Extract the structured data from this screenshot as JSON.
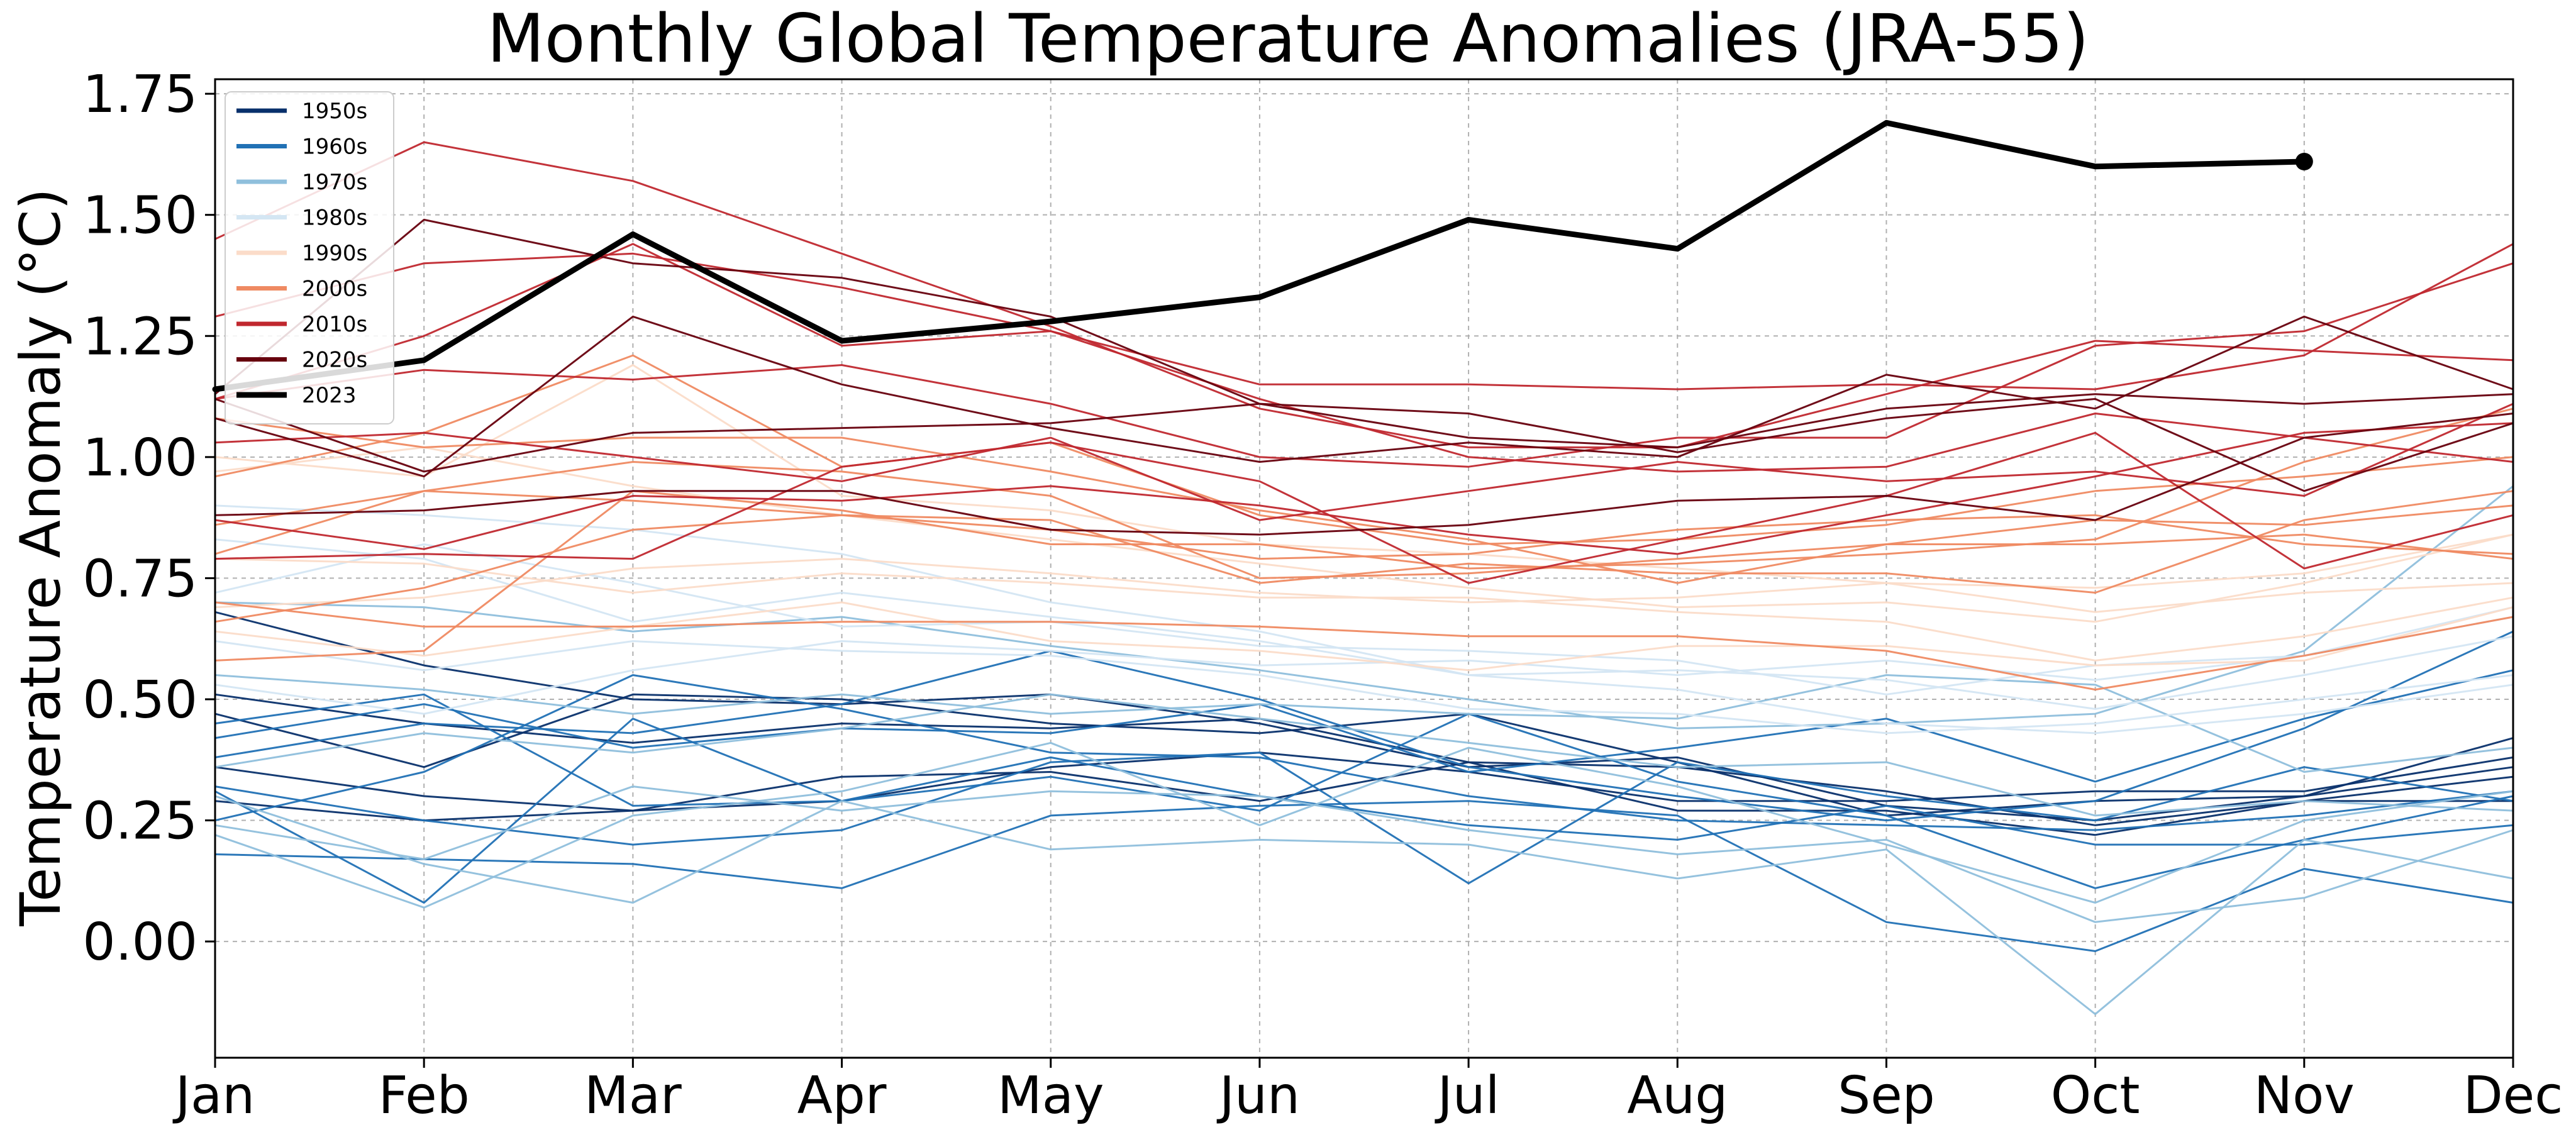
{
  "chart_data": {
    "type": "line",
    "title": "Monthly Global Temperature Anomalies (JRA-55)",
    "xlabel": "",
    "ylabel": "Temperature Anomaly (°C)",
    "categories": [
      "Jan",
      "Feb",
      "Mar",
      "Apr",
      "May",
      "Jun",
      "Jul",
      "Aug",
      "Sep",
      "Oct",
      "Nov",
      "Dec"
    ],
    "ylim": [
      -0.24,
      1.78
    ],
    "yticks": [
      0.0,
      0.25,
      0.5,
      0.75,
      1.0,
      1.25,
      1.5,
      1.75
    ],
    "ytick_labels": [
      "0.00",
      "0.25",
      "0.50",
      "0.75",
      "1.00",
      "1.25",
      "1.50",
      "1.75"
    ],
    "grid": true,
    "legend_position": "top-left",
    "legend": [
      {
        "label": "1950s",
        "color": "#08306b"
      },
      {
        "label": "1960s",
        "color": "#2171b5"
      },
      {
        "label": "1970s",
        "color": "#8fbfdc"
      },
      {
        "label": "1980s",
        "color": "#d4e6f3"
      },
      {
        "label": "1990s",
        "color": "#fbdcc9"
      },
      {
        "label": "2000s",
        "color": "#ef8a62"
      },
      {
        "label": "2010s",
        "color": "#c0282f"
      },
      {
        "label": "2020s",
        "color": "#67000d"
      },
      {
        "label": "2023",
        "color": "#000000"
      }
    ],
    "series": [
      {
        "decade": "1950s",
        "color": "#08306b",
        "values": [
          0.47,
          0.36,
          0.51,
          0.5,
          0.45,
          0.43,
          0.47,
          0.37,
          0.26,
          0.29,
          0.3,
          0.36
        ]
      },
      {
        "decade": "1950s",
        "color": "#08306b",
        "values": [
          0.68,
          0.57,
          0.5,
          0.49,
          0.51,
          0.45,
          0.36,
          0.38,
          0.28,
          0.25,
          0.3,
          0.42
        ]
      },
      {
        "decade": "1950s",
        "color": "#08306b",
        "values": [
          0.36,
          0.3,
          0.27,
          0.34,
          0.35,
          0.29,
          0.37,
          0.27,
          0.27,
          0.22,
          0.29,
          0.34
        ]
      },
      {
        "decade": "1950s",
        "color": "#08306b",
        "values": [
          0.29,
          0.25,
          0.27,
          0.29,
          0.36,
          0.39,
          0.35,
          0.29,
          0.29,
          0.31,
          0.31,
          0.38
        ]
      },
      {
        "decade": "1950s",
        "color": "#08306b",
        "values": [
          0.51,
          0.45,
          0.41,
          0.45,
          0.44,
          0.46,
          0.37,
          0.36,
          0.31,
          0.24,
          0.29,
          0.29
        ]
      },
      {
        "decade": "1960s",
        "color": "#2171b5",
        "values": [
          0.32,
          0.25,
          0.2,
          0.23,
          0.37,
          0.39,
          0.12,
          0.37,
          0.3,
          0.25,
          0.36,
          0.29
        ]
      },
      {
        "decade": "1960s",
        "color": "#2171b5",
        "values": [
          0.18,
          0.17,
          0.16,
          0.11,
          0.26,
          0.28,
          0.29,
          0.26,
          0.04,
          -0.02,
          0.15,
          0.08
        ]
      },
      {
        "decade": "1960s",
        "color": "#2171b5",
        "values": [
          0.42,
          0.49,
          0.4,
          0.44,
          0.43,
          0.49,
          0.35,
          0.4,
          0.46,
          0.33,
          0.46,
          0.56
        ]
      },
      {
        "decade": "1960s",
        "color": "#2171b5",
        "values": [
          0.31,
          0.08,
          0.46,
          0.29,
          0.34,
          0.27,
          0.47,
          0.33,
          0.26,
          0.11,
          0.21,
          0.3
        ]
      },
      {
        "decade": "1960s",
        "color": "#2171b5",
        "values": [
          0.45,
          0.51,
          0.28,
          0.29,
          0.38,
          0.3,
          0.24,
          0.21,
          0.28,
          0.2,
          0.2,
          0.24
        ]
      },
      {
        "decade": "1960s",
        "color": "#2171b5",
        "values": [
          0.25,
          0.35,
          0.55,
          0.48,
          0.39,
          0.38,
          0.3,
          0.25,
          0.24,
          0.23,
          0.26,
          0.31
        ]
      },
      {
        "decade": "1960s",
        "color": "#2171b5",
        "values": [
          0.38,
          0.45,
          0.43,
          0.49,
          0.6,
          0.5,
          0.36,
          0.3,
          0.25,
          0.29,
          0.44,
          0.64
        ]
      },
      {
        "decade": "1970s",
        "color": "#8fbfdc",
        "values": [
          0.22,
          0.07,
          0.26,
          0.31,
          0.41,
          0.24,
          0.4,
          0.32,
          0.2,
          0.08,
          0.25,
          0.31
        ]
      },
      {
        "decade": "1970s",
        "color": "#8fbfdc",
        "values": [
          0.3,
          0.16,
          0.08,
          0.29,
          0.19,
          0.21,
          0.2,
          0.13,
          0.19,
          -0.15,
          0.21,
          0.13
        ]
      },
      {
        "decade": "1970s",
        "color": "#8fbfdc",
        "values": [
          0.7,
          0.69,
          0.64,
          0.67,
          0.61,
          0.56,
          0.5,
          0.44,
          0.45,
          0.47,
          0.6,
          0.94
        ]
      },
      {
        "decade": "1970s",
        "color": "#8fbfdc",
        "values": [
          0.24,
          0.17,
          0.32,
          0.27,
          0.31,
          0.3,
          0.23,
          0.18,
          0.21,
          0.04,
          0.09,
          0.23
        ]
      },
      {
        "decade": "1970s",
        "color": "#8fbfdc",
        "values": [
          0.55,
          0.52,
          0.47,
          0.51,
          0.47,
          0.49,
          0.47,
          0.46,
          0.55,
          0.53,
          0.35,
          0.4
        ]
      },
      {
        "decade": "1970s",
        "color": "#8fbfdc",
        "values": [
          0.36,
          0.43,
          0.39,
          0.44,
          0.51,
          0.46,
          0.41,
          0.36,
          0.37,
          0.26,
          0.29,
          0.27
        ]
      },
      {
        "decade": "1980s",
        "color": "#d4e6f3",
        "values": [
          0.83,
          0.79,
          0.66,
          0.72,
          0.67,
          0.62,
          0.55,
          0.56,
          0.54,
          0.48,
          0.55,
          0.63
        ]
      },
      {
        "decade": "1980s",
        "color": "#d4e6f3",
        "values": [
          0.62,
          0.56,
          0.62,
          0.6,
          0.59,
          0.55,
          0.48,
          0.47,
          0.43,
          0.45,
          0.5,
          0.55
        ]
      },
      {
        "decade": "1980s",
        "color": "#d4e6f3",
        "values": [
          0.9,
          0.88,
          0.85,
          0.8,
          0.7,
          0.64,
          0.55,
          0.52,
          0.45,
          0.43,
          0.47,
          0.53
        ]
      },
      {
        "decade": "1980s",
        "color": "#d4e6f3",
        "values": [
          0.53,
          0.47,
          0.56,
          0.62,
          0.6,
          0.57,
          0.58,
          0.55,
          0.58,
          0.54,
          0.59,
          0.67
        ]
      },
      {
        "decade": "1980s",
        "color": "#d4e6f3",
        "values": [
          0.72,
          0.82,
          0.74,
          0.65,
          0.66,
          0.61,
          0.6,
          0.58,
          0.51,
          0.57,
          0.59,
          0.69
        ]
      },
      {
        "decade": "1990s",
        "color": "#fbdcc9",
        "values": [
          1.0,
          0.96,
          1.19,
          0.92,
          0.89,
          0.82,
          0.8,
          0.77,
          0.74,
          0.73,
          0.76,
          0.84
        ]
      },
      {
        "decade": "1990s",
        "color": "#fbdcc9",
        "values": [
          0.79,
          0.78,
          0.72,
          0.76,
          0.74,
          0.71,
          0.71,
          0.68,
          0.66,
          0.58,
          0.63,
          0.71
        ]
      },
      {
        "decade": "1990s",
        "color": "#fbdcc9",
        "values": [
          0.64,
          0.59,
          0.65,
          0.7,
          0.62,
          0.6,
          0.56,
          0.61,
          0.61,
          0.57,
          0.58,
          0.69
        ]
      },
      {
        "decade": "1990s",
        "color": "#fbdcc9",
        "values": [
          0.97,
          1.02,
          0.94,
          0.88,
          0.83,
          0.78,
          0.73,
          0.69,
          0.7,
          0.66,
          0.74,
          0.84
        ]
      },
      {
        "decade": "1990s",
        "color": "#fbdcc9",
        "values": [
          0.69,
          0.71,
          0.77,
          0.79,
          0.76,
          0.72,
          0.7,
          0.71,
          0.74,
          0.68,
          0.72,
          0.74
        ]
      },
      {
        "decade": "2000s",
        "color": "#ef8a62",
        "values": [
          0.58,
          0.6,
          0.93,
          0.89,
          0.82,
          0.82,
          0.77,
          0.78,
          0.8,
          0.83,
          0.99,
          1.1
        ]
      },
      {
        "decade": "2000s",
        "color": "#ef8a62",
        "values": [
          0.96,
          1.05,
          1.21,
          0.98,
          1.03,
          0.88,
          0.82,
          0.83,
          0.86,
          0.93,
          0.96,
          1.0
        ]
      },
      {
        "decade": "2000s",
        "color": "#ef8a62",
        "values": [
          0.66,
          0.73,
          0.85,
          0.88,
          0.87,
          0.74,
          0.78,
          0.76,
          0.76,
          0.72,
          0.87,
          0.93
        ]
      },
      {
        "decade": "2000s",
        "color": "#ef8a62",
        "values": [
          0.8,
          0.93,
          0.99,
          0.97,
          0.92,
          0.75,
          0.76,
          0.79,
          0.82,
          0.82,
          0.84,
          0.79
        ]
      },
      {
        "decade": "2000s",
        "color": "#ef8a62",
        "values": [
          0.7,
          0.65,
          0.65,
          0.66,
          0.66,
          0.65,
          0.63,
          0.63,
          0.6,
          0.52,
          0.59,
          0.67
        ]
      },
      {
        "decade": "2000s",
        "color": "#ef8a62",
        "values": [
          1.08,
          1.02,
          1.04,
          1.04,
          0.97,
          0.89,
          0.83,
          0.74,
          0.82,
          0.87,
          0.86,
          0.9
        ]
      },
      {
        "decade": "2000s",
        "color": "#ef8a62",
        "values": [
          0.86,
          0.93,
          0.91,
          0.88,
          0.85,
          0.79,
          0.8,
          0.85,
          0.87,
          0.88,
          0.82,
          0.8
        ]
      },
      {
        "decade": "2010s",
        "color": "#c0282f",
        "values": [
          1.29,
          1.4,
          1.42,
          1.35,
          1.26,
          1.15,
          1.15,
          1.14,
          1.15,
          1.14,
          1.21,
          1.44
        ]
      },
      {
        "decade": "2010s",
        "color": "#c0282f",
        "values": [
          1.45,
          1.65,
          1.57,
          1.42,
          1.27,
          1.1,
          1.02,
          1.02,
          1.13,
          1.24,
          1.22,
          1.2
        ]
      },
      {
        "decade": "2010s",
        "color": "#c0282f",
        "values": [
          1.12,
          1.18,
          1.16,
          1.19,
          1.11,
          1.0,
          0.98,
          1.04,
          1.04,
          1.23,
          1.26,
          1.4
        ]
      },
      {
        "decade": "2010s",
        "color": "#c0282f",
        "values": [
          0.87,
          0.81,
          0.92,
          0.91,
          0.94,
          0.9,
          0.84,
          0.8,
          0.88,
          0.96,
          1.05,
          1.07
        ]
      },
      {
        "decade": "2010s",
        "color": "#c0282f",
        "values": [
          0.79,
          0.8,
          0.79,
          0.98,
          1.03,
          0.95,
          0.74,
          0.83,
          0.92,
          1.05,
          0.77,
          0.88
        ]
      },
      {
        "decade": "2010s",
        "color": "#c0282f",
        "values": [
          1.03,
          1.05,
          1.0,
          0.95,
          1.04,
          0.87,
          0.93,
          0.99,
          0.95,
          0.97,
          0.92,
          1.11
        ]
      },
      {
        "decade": "2010s",
        "color": "#c0282f",
        "values": [
          1.12,
          1.25,
          1.44,
          1.23,
          1.26,
          1.12,
          1.0,
          0.97,
          0.98,
          1.09,
          1.04,
          0.99
        ]
      },
      {
        "decade": "2020s",
        "color": "#67000d",
        "values": [
          1.13,
          1.49,
          1.4,
          1.37,
          1.29,
          1.11,
          1.09,
          1.01,
          1.08,
          1.12,
          0.93,
          1.07
        ]
      },
      {
        "decade": "2020s",
        "color": "#67000d",
        "values": [
          1.08,
          0.96,
          1.29,
          1.15,
          1.06,
          0.99,
          1.03,
          1.0,
          1.17,
          1.1,
          1.29,
          1.14
        ]
      },
      {
        "decade": "2020s",
        "color": "#67000d",
        "values": [
          0.88,
          0.89,
          0.93,
          0.93,
          0.85,
          0.84,
          0.86,
          0.91,
          0.92,
          0.87,
          1.04,
          1.09
        ]
      },
      {
        "decade": "2020s",
        "color": "#67000d",
        "values": [
          1.12,
          0.97,
          1.05,
          1.06,
          1.07,
          1.11,
          1.04,
          1.02,
          1.1,
          1.13,
          1.11,
          1.13
        ]
      },
      {
        "decade": "2023",
        "color": "#000000",
        "emphasis": true,
        "values": [
          1.14,
          1.2,
          1.46,
          1.24,
          1.28,
          1.33,
          1.49,
          1.43,
          1.69,
          1.6,
          1.61,
          null
        ]
      }
    ]
  }
}
